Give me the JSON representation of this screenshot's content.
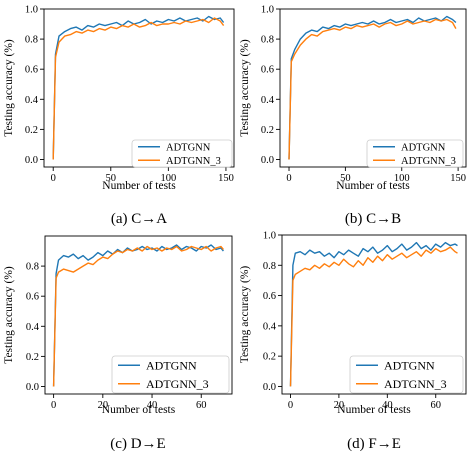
{
  "legend_labels": [
    "ADTGNN",
    "ADTGNN_3"
  ],
  "series_colors": {
    "ADTGNN": "#1f77b4",
    "ADTGNN_3": "#ff7f0e"
  },
  "chart_data": [
    {
      "type": "line",
      "caption": "(a) C→A",
      "xlabel": "Number of tests",
      "ylabel": "Testing accuracy (%)",
      "xlim": [
        -8,
        157
      ],
      "ylim": [
        -0.05,
        1.0
      ],
      "xticks": [
        "0",
        "50",
        "100",
        "150"
      ],
      "yticks": [
        "0.0",
        "0.2",
        "0.4",
        "0.6",
        "0.8",
        "1.0"
      ],
      "legend": "lower right",
      "series": [
        {
          "name": "ADTGNN",
          "x": [
            0,
            2,
            5,
            10,
            15,
            20,
            25,
            30,
            35,
            40,
            45,
            50,
            55,
            60,
            65,
            70,
            75,
            80,
            85,
            90,
            95,
            100,
            105,
            110,
            115,
            120,
            125,
            130,
            135,
            140,
            145,
            148
          ],
          "y": [
            0.0,
            0.7,
            0.82,
            0.85,
            0.87,
            0.88,
            0.86,
            0.89,
            0.88,
            0.9,
            0.89,
            0.9,
            0.91,
            0.89,
            0.92,
            0.9,
            0.91,
            0.93,
            0.9,
            0.92,
            0.91,
            0.93,
            0.92,
            0.94,
            0.92,
            0.93,
            0.94,
            0.92,
            0.95,
            0.93,
            0.94,
            0.91
          ]
        },
        {
          "name": "ADTGNN_3",
          "x": [
            0,
            2,
            5,
            10,
            15,
            20,
            25,
            30,
            35,
            40,
            45,
            50,
            55,
            60,
            65,
            70,
            75,
            80,
            85,
            90,
            95,
            100,
            105,
            110,
            115,
            120,
            125,
            130,
            135,
            140,
            145,
            148
          ],
          "y": [
            0.0,
            0.68,
            0.78,
            0.82,
            0.83,
            0.85,
            0.84,
            0.86,
            0.85,
            0.87,
            0.86,
            0.88,
            0.87,
            0.89,
            0.88,
            0.9,
            0.88,
            0.89,
            0.91,
            0.89,
            0.9,
            0.9,
            0.91,
            0.9,
            0.92,
            0.91,
            0.92,
            0.93,
            0.91,
            0.94,
            0.92,
            0.89
          ]
        }
      ]
    },
    {
      "type": "line",
      "caption": "(b) C→B",
      "xlabel": "Number of tests",
      "ylabel": "Testing accuracy (%)",
      "xlim": [
        -8,
        157
      ],
      "ylim": [
        -0.05,
        1.0
      ],
      "xticks": [
        "0",
        "50",
        "100",
        "150"
      ],
      "yticks": [
        "0.0",
        "0.2",
        "0.4",
        "0.6",
        "0.8",
        "1.0"
      ],
      "legend": "lower right",
      "series": [
        {
          "name": "ADTGNN",
          "x": [
            0,
            2,
            5,
            10,
            15,
            20,
            25,
            30,
            35,
            40,
            45,
            50,
            55,
            60,
            65,
            70,
            75,
            80,
            85,
            90,
            95,
            100,
            105,
            110,
            115,
            120,
            125,
            130,
            135,
            140,
            145,
            148
          ],
          "y": [
            0.0,
            0.67,
            0.73,
            0.8,
            0.84,
            0.86,
            0.85,
            0.88,
            0.87,
            0.89,
            0.88,
            0.9,
            0.89,
            0.9,
            0.91,
            0.9,
            0.92,
            0.9,
            0.91,
            0.93,
            0.91,
            0.92,
            0.93,
            0.91,
            0.94,
            0.92,
            0.93,
            0.94,
            0.92,
            0.95,
            0.93,
            0.91
          ]
        },
        {
          "name": "ADTGNN_3",
          "x": [
            0,
            2,
            5,
            10,
            15,
            20,
            25,
            30,
            35,
            40,
            45,
            50,
            55,
            60,
            65,
            70,
            75,
            80,
            85,
            90,
            95,
            100,
            105,
            110,
            115,
            120,
            125,
            130,
            135,
            140,
            145,
            148
          ],
          "y": [
            0.0,
            0.65,
            0.7,
            0.76,
            0.8,
            0.83,
            0.82,
            0.85,
            0.86,
            0.87,
            0.86,
            0.88,
            0.87,
            0.89,
            0.88,
            0.89,
            0.9,
            0.88,
            0.9,
            0.91,
            0.89,
            0.9,
            0.92,
            0.9,
            0.91,
            0.92,
            0.91,
            0.93,
            0.92,
            0.93,
            0.91,
            0.87
          ]
        }
      ]
    },
    {
      "type": "line",
      "caption": "(c) D→E",
      "xlabel": "Number of tests",
      "ylabel": "Testing accuracy (%)",
      "xlim": [
        -3.5,
        72.5
      ],
      "ylim": [
        -0.05,
        1.0
      ],
      "xticks": [
        "0",
        "20",
        "40",
        "60"
      ],
      "yticks": [
        "0.0",
        "0.2",
        "0.4",
        "0.6",
        "0.8"
      ],
      "legend": "lower right",
      "series": [
        {
          "name": "ADTGNN",
          "x": [
            0,
            1,
            2,
            4,
            6,
            8,
            10,
            12,
            14,
            16,
            18,
            20,
            22,
            24,
            26,
            28,
            30,
            32,
            34,
            36,
            38,
            40,
            42,
            44,
            46,
            48,
            50,
            52,
            54,
            56,
            58,
            60,
            62,
            64,
            66,
            68,
            69
          ],
          "y": [
            0.0,
            0.75,
            0.84,
            0.87,
            0.86,
            0.88,
            0.85,
            0.87,
            0.84,
            0.86,
            0.89,
            0.87,
            0.9,
            0.88,
            0.91,
            0.89,
            0.92,
            0.9,
            0.91,
            0.93,
            0.91,
            0.92,
            0.9,
            0.93,
            0.91,
            0.92,
            0.94,
            0.91,
            0.93,
            0.92,
            0.9,
            0.93,
            0.92,
            0.94,
            0.91,
            0.92,
            0.9
          ]
        },
        {
          "name": "ADTGNN_3",
          "x": [
            0,
            1,
            2,
            4,
            6,
            8,
            10,
            12,
            14,
            16,
            18,
            20,
            22,
            24,
            26,
            28,
            30,
            32,
            34,
            36,
            38,
            40,
            42,
            44,
            46,
            48,
            50,
            52,
            54,
            56,
            58,
            60,
            62,
            64,
            66,
            68,
            69
          ],
          "y": [
            0.0,
            0.72,
            0.76,
            0.78,
            0.77,
            0.76,
            0.78,
            0.8,
            0.82,
            0.81,
            0.84,
            0.86,
            0.85,
            0.88,
            0.9,
            0.89,
            0.91,
            0.9,
            0.92,
            0.9,
            0.93,
            0.91,
            0.92,
            0.9,
            0.92,
            0.91,
            0.93,
            0.9,
            0.91,
            0.93,
            0.92,
            0.91,
            0.93,
            0.9,
            0.92,
            0.93,
            0.91
          ]
        }
      ]
    },
    {
      "type": "line",
      "caption": "(d) F→E",
      "xlabel": "Number of tests",
      "ylabel": "Testing accuracy (%)",
      "xlim": [
        -3.5,
        72.5
      ],
      "ylim": [
        -0.05,
        1.0
      ],
      "xticks": [
        "0",
        "20",
        "40",
        "60"
      ],
      "yticks": [
        "0.0",
        "0.2",
        "0.4",
        "0.6",
        "0.8",
        "1.0"
      ],
      "legend": "lower right",
      "series": [
        {
          "name": "ADTGNN",
          "x": [
            0,
            1,
            2,
            4,
            6,
            8,
            10,
            12,
            14,
            16,
            18,
            20,
            22,
            24,
            26,
            28,
            30,
            32,
            34,
            36,
            38,
            40,
            42,
            44,
            46,
            48,
            50,
            52,
            54,
            56,
            58,
            60,
            62,
            64,
            66,
            68,
            69
          ],
          "y": [
            0.0,
            0.8,
            0.88,
            0.89,
            0.87,
            0.9,
            0.88,
            0.89,
            0.86,
            0.88,
            0.85,
            0.89,
            0.87,
            0.9,
            0.88,
            0.86,
            0.91,
            0.89,
            0.92,
            0.88,
            0.9,
            0.93,
            0.89,
            0.91,
            0.94,
            0.9,
            0.92,
            0.95,
            0.91,
            0.93,
            0.9,
            0.94,
            0.92,
            0.95,
            0.93,
            0.94,
            0.93
          ]
        },
        {
          "name": "ADTGNN_3",
          "x": [
            0,
            1,
            2,
            4,
            6,
            8,
            10,
            12,
            14,
            16,
            18,
            20,
            22,
            24,
            26,
            28,
            30,
            32,
            34,
            36,
            38,
            40,
            42,
            44,
            46,
            48,
            50,
            52,
            54,
            56,
            58,
            60,
            62,
            64,
            66,
            68,
            69
          ],
          "y": [
            0.0,
            0.7,
            0.74,
            0.76,
            0.78,
            0.77,
            0.8,
            0.78,
            0.81,
            0.79,
            0.82,
            0.8,
            0.84,
            0.81,
            0.79,
            0.83,
            0.8,
            0.85,
            0.82,
            0.86,
            0.83,
            0.87,
            0.84,
            0.86,
            0.88,
            0.85,
            0.87,
            0.89,
            0.86,
            0.9,
            0.88,
            0.91,
            0.89,
            0.9,
            0.92,
            0.89,
            0.88
          ]
        }
      ]
    }
  ]
}
